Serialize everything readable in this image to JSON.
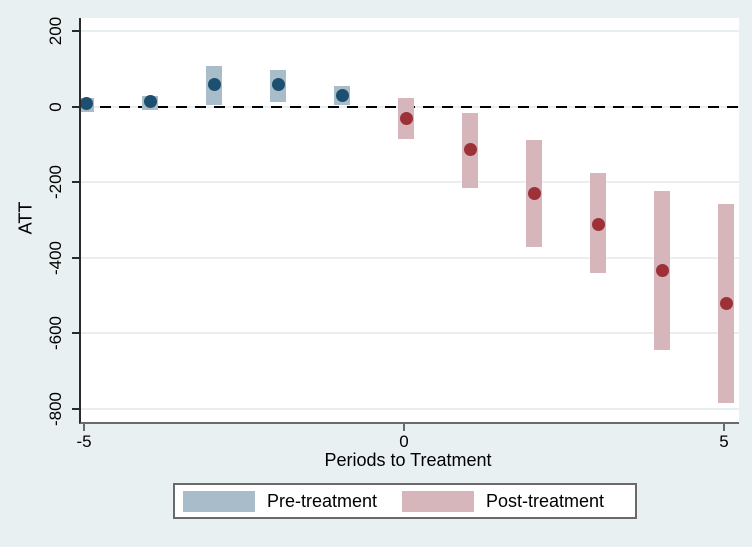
{
  "figure": {
    "background": "#e8f0f2",
    "plot_background": "#ffffff",
    "gridline_color": "#e9eef0",
    "y_axis_color": "#2a2a2a",
    "x_axis_color": "#6a6a6a",
    "zero_line_color": "#000000",
    "legend_border_color": "#6a6a6a"
  },
  "chart_data": {
    "type": "scatter",
    "title": "",
    "xlabel": "Periods to Treatment",
    "ylabel": "ATT",
    "xticks": [
      -5,
      0,
      5
    ],
    "yticks": [
      200,
      0,
      -200,
      -400,
      -600,
      -800
    ],
    "xlim": [
      -5.6,
      5.3
    ],
    "ylim": [
      -836,
      234
    ],
    "grid": true,
    "reference_line_y": 0,
    "reference_line_style": "dashed",
    "legend_position": "bottom",
    "series": [
      {
        "name": "Pre-treatment",
        "bar_color": "#a9bcca",
        "point_color": "#1d4f71",
        "points": [
          {
            "x": -5,
            "y": 9,
            "ci_low": -14,
            "ci_high": 22
          },
          {
            "x": -4,
            "y": 13,
            "ci_low": -10,
            "ci_high": 29
          },
          {
            "x": -3,
            "y": 59,
            "ci_low": 5,
            "ci_high": 108
          },
          {
            "x": -2,
            "y": 57,
            "ci_low": 13,
            "ci_high": 97
          },
          {
            "x": -1,
            "y": 28,
            "ci_low": 4,
            "ci_high": 53
          }
        ]
      },
      {
        "name": "Post-treatment",
        "bar_color": "#d6b6bb",
        "point_color": "#9c3238",
        "points": [
          {
            "x": 0,
            "y": -33,
            "ci_low": -86,
            "ci_high": 22
          },
          {
            "x": 1,
            "y": -115,
            "ci_low": -216,
            "ci_high": -16
          },
          {
            "x": 2,
            "y": -230,
            "ci_low": -371,
            "ci_high": -88
          },
          {
            "x": 3,
            "y": -312,
            "ci_low": -441,
            "ci_high": -176
          },
          {
            "x": 4,
            "y": -435,
            "ci_low": -645,
            "ci_high": -225
          },
          {
            "x": 5,
            "y": -521,
            "ci_low": -786,
            "ci_high": -259
          }
        ]
      }
    ]
  }
}
